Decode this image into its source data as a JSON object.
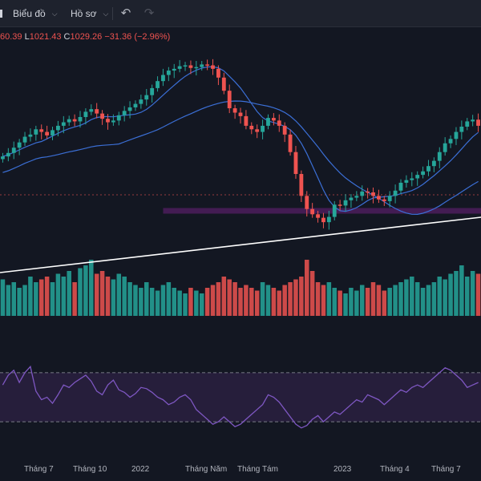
{
  "toolbar": {
    "chart_menu": "Biểu đồ",
    "profile_menu": "Hồ sơ",
    "undo_icon": "undo-icon",
    "redo_icon": "redo-icon"
  },
  "legend": {
    "open_partial": "60.39",
    "low_key": "L",
    "low": "1021.43",
    "close_key": "C",
    "close": "1029.26",
    "change": "−31.36 (−2.96%)"
  },
  "x_labels": [
    "Tháng 7",
    "Tháng 10",
    "2022",
    "Tháng Năm",
    "Tháng Tám",
    "2023",
    "Tháng 4",
    "Tháng 7"
  ],
  "colors": {
    "background": "#131722",
    "toolbar": "#1e222d",
    "up": "#26a69a",
    "down": "#ef5350",
    "ma_line": "#3b6fd6",
    "trendline": "#ffffff",
    "zone": "#9c27b0",
    "rsi_line": "#7e57c2",
    "rsi_band": "#2a2040"
  },
  "chart_data": {
    "type": "candlestick",
    "indicators": [
      "moving-average-short",
      "moving-average-long",
      "volume",
      "rsi"
    ],
    "last_bar": {
      "low": 1021.43,
      "close": 1029.26,
      "change": -31.36,
      "change_pct": -2.96
    },
    "grid": false,
    "price_series": [
      1290,
      1298,
      1310,
      1322,
      1335,
      1340,
      1352,
      1346,
      1338,
      1350,
      1360,
      1368,
      1375,
      1370,
      1380,
      1392,
      1398,
      1388,
      1376,
      1368,
      1372,
      1384,
      1394,
      1402,
      1410,
      1420,
      1430,
      1446,
      1462,
      1476,
      1486,
      1490,
      1496,
      1498,
      1492,
      1494,
      1500,
      1498,
      1490,
      1470,
      1440,
      1400,
      1390,
      1382,
      1360,
      1352,
      1346,
      1360,
      1378,
      1372,
      1360,
      1340,
      1300,
      1250,
      1200,
      1170,
      1158,
      1150,
      1140,
      1152,
      1180,
      1178,
      1190,
      1196,
      1200,
      1210,
      1208,
      1200,
      1192,
      1188,
      1200,
      1212,
      1230,
      1236,
      1240,
      1248,
      1256,
      1268,
      1280,
      1300,
      1320,
      1330,
      1346,
      1358,
      1370,
      1374,
      1360
    ],
    "volume_series": [
      0.65,
      0.55,
      0.6,
      0.5,
      0.55,
      0.7,
      0.6,
      0.65,
      0.7,
      0.6,
      0.75,
      0.7,
      0.8,
      0.6,
      0.85,
      0.9,
      1.0,
      0.75,
      0.8,
      0.7,
      0.65,
      0.75,
      0.7,
      0.6,
      0.55,
      0.5,
      0.6,
      0.5,
      0.45,
      0.55,
      0.6,
      0.5,
      0.45,
      0.4,
      0.5,
      0.45,
      0.4,
      0.5,
      0.55,
      0.6,
      0.7,
      0.65,
      0.6,
      0.5,
      0.55,
      0.5,
      0.45,
      0.6,
      0.55,
      0.5,
      0.45,
      0.55,
      0.6,
      0.65,
      0.7,
      1.0,
      0.8,
      0.6,
      0.55,
      0.6,
      0.5,
      0.45,
      0.4,
      0.5,
      0.45,
      0.55,
      0.5,
      0.6,
      0.55,
      0.45,
      0.5,
      0.55,
      0.6,
      0.65,
      0.7,
      0.6,
      0.5,
      0.55,
      0.6,
      0.7,
      0.65,
      0.75,
      0.8,
      0.9,
      0.7,
      0.8,
      0.75
    ],
    "rsi_series": [
      60,
      68,
      72,
      62,
      70,
      75,
      55,
      48,
      50,
      45,
      52,
      60,
      58,
      62,
      65,
      68,
      63,
      55,
      52,
      60,
      64,
      56,
      54,
      50,
      53,
      58,
      57,
      54,
      50,
      48,
      44,
      46,
      50,
      52,
      48,
      40,
      36,
      32,
      28,
      30,
      34,
      30,
      26,
      28,
      32,
      36,
      40,
      44,
      52,
      50,
      46,
      40,
      34,
      28,
      25,
      27,
      32,
      35,
      30,
      34,
      38,
      36,
      40,
      44,
      48,
      46,
      52,
      50,
      48,
      44,
      48,
      52,
      56,
      54,
      58,
      60,
      58,
      62,
      66,
      70,
      74,
      72,
      68,
      64,
      58,
      60,
      62
    ],
    "rsi_band": {
      "upper": 70,
      "lower": 30
    },
    "x_tick_labels": [
      "Tháng 7",
      "Tháng 10",
      "2022",
      "Tháng Năm",
      "Tháng Tám",
      "2023",
      "Tháng 4",
      "Tháng 7"
    ]
  }
}
